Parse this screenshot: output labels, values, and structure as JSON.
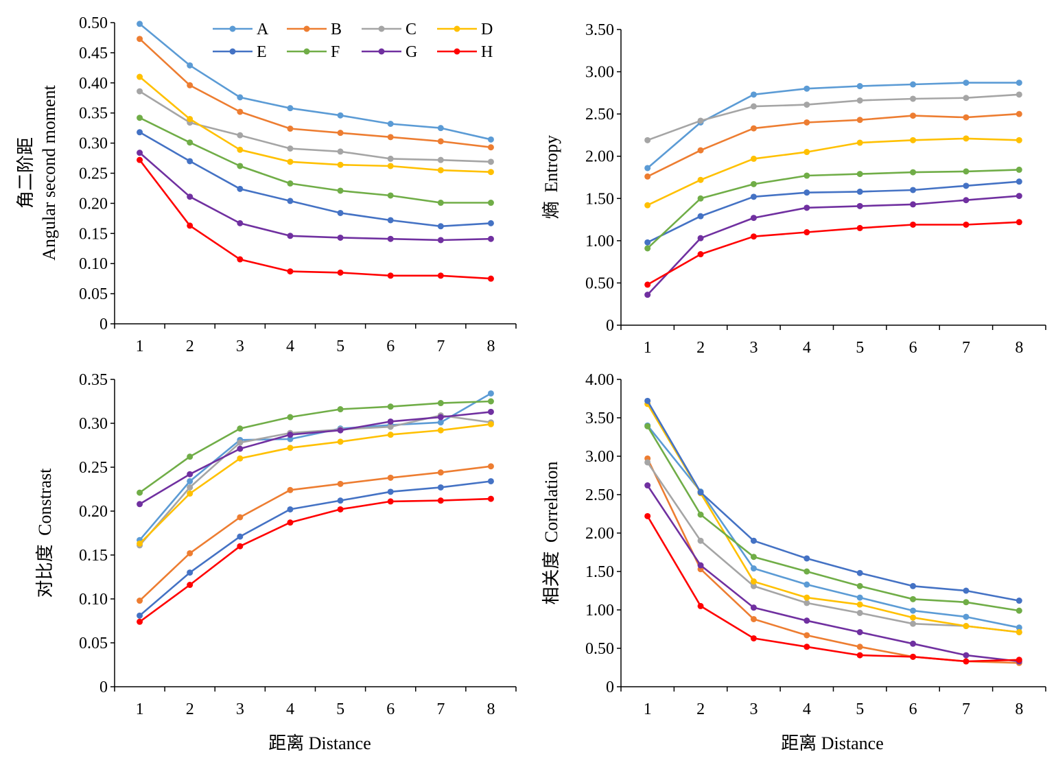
{
  "legend": [
    {
      "label": "A",
      "color": "#5B9BD5"
    },
    {
      "label": "B",
      "color": "#ED7D31"
    },
    {
      "label": "C",
      "color": "#A5A5A5"
    },
    {
      "label": "D",
      "color": "#FFC000"
    },
    {
      "label": "E",
      "color": "#4472C4"
    },
    {
      "label": "F",
      "color": "#70AD47"
    },
    {
      "label": "G",
      "color": "#7030A0"
    },
    {
      "label": "H",
      "color": "#FF0000"
    }
  ],
  "chart_data": [
    {
      "type": "line",
      "title": "",
      "ylabel_cn": "角二阶距",
      "ylabel_en": "Angular second moment",
      "xlabel": "",
      "x": [
        1,
        2,
        3,
        4,
        5,
        6,
        7,
        8
      ],
      "ylim": [
        0,
        0.5
      ],
      "yticks": [
        "0",
        "0.05",
        "0.10",
        "0.15",
        "0.20",
        "0.25",
        "0.30",
        "0.35",
        "0.40",
        "0.45",
        "0.50"
      ],
      "legend_placement": "top",
      "series": [
        {
          "name": "A",
          "values": [
            0.498,
            0.429,
            0.376,
            0.358,
            0.346,
            0.332,
            0.325,
            0.306
          ]
        },
        {
          "name": "B",
          "values": [
            0.473,
            0.396,
            0.352,
            0.324,
            0.317,
            0.31,
            0.303,
            0.293
          ]
        },
        {
          "name": "C",
          "values": [
            0.386,
            0.334,
            0.313,
            0.291,
            0.286,
            0.274,
            0.272,
            0.269
          ]
        },
        {
          "name": "D",
          "values": [
            0.41,
            0.34,
            0.289,
            0.269,
            0.264,
            0.262,
            0.255,
            0.252
          ]
        },
        {
          "name": "E",
          "values": [
            0.318,
            0.27,
            0.224,
            0.204,
            0.184,
            0.172,
            0.162,
            0.167
          ]
        },
        {
          "name": "F",
          "values": [
            0.342,
            0.301,
            0.262,
            0.233,
            0.221,
            0.213,
            0.201,
            0.201
          ]
        },
        {
          "name": "G",
          "values": [
            0.284,
            0.211,
            0.167,
            0.146,
            0.143,
            0.141,
            0.139,
            0.141
          ]
        },
        {
          "name": "H",
          "values": [
            0.272,
            0.163,
            0.107,
            0.087,
            0.085,
            0.08,
            0.08,
            0.075
          ]
        }
      ]
    },
    {
      "type": "line",
      "title": "",
      "ylabel_cn": "熵",
      "ylabel_en": "Entropy",
      "xlabel": "",
      "x": [
        1,
        2,
        3,
        4,
        5,
        6,
        7,
        8
      ],
      "ylim": [
        0,
        3.5
      ],
      "yticks": [
        "0",
        "0.50",
        "1.00",
        "1.50",
        "2.00",
        "2.50",
        "3.00",
        "3.50"
      ],
      "series": [
        {
          "name": "A",
          "values": [
            1.86,
            2.4,
            2.73,
            2.8,
            2.83,
            2.85,
            2.87,
            2.87
          ]
        },
        {
          "name": "B",
          "values": [
            1.76,
            2.07,
            2.33,
            2.4,
            2.43,
            2.48,
            2.46,
            2.5
          ]
        },
        {
          "name": "C",
          "values": [
            2.19,
            2.42,
            2.59,
            2.61,
            2.66,
            2.68,
            2.69,
            2.73
          ]
        },
        {
          "name": "D",
          "values": [
            1.42,
            1.72,
            1.97,
            2.05,
            2.16,
            2.19,
            2.21,
            2.19
          ]
        },
        {
          "name": "E",
          "values": [
            0.98,
            1.29,
            1.52,
            1.57,
            1.58,
            1.6,
            1.65,
            1.7
          ]
        },
        {
          "name": "F",
          "values": [
            0.91,
            1.5,
            1.67,
            1.77,
            1.79,
            1.81,
            1.82,
            1.84
          ]
        },
        {
          "name": "G",
          "values": [
            0.36,
            1.03,
            1.27,
            1.39,
            1.41,
            1.43,
            1.48,
            1.53
          ]
        },
        {
          "name": "H",
          "values": [
            0.48,
            0.84,
            1.05,
            1.1,
            1.15,
            1.19,
            1.19,
            1.22
          ]
        }
      ]
    },
    {
      "type": "line",
      "title": "",
      "ylabel_cn": "对比度",
      "ylabel_en": "Constrast",
      "xlabel": "距离 Distance",
      "x": [
        1,
        2,
        3,
        4,
        5,
        6,
        7,
        8
      ],
      "ylim": [
        0,
        0.35
      ],
      "yticks": [
        "0",
        "0.05",
        "0.10",
        "0.15",
        "0.20",
        "0.25",
        "0.30",
        "0.35"
      ],
      "series": [
        {
          "name": "A",
          "values": [
            0.167,
            0.234,
            0.281,
            0.282,
            0.294,
            0.298,
            0.301,
            0.334
          ]
        },
        {
          "name": "B",
          "values": [
            0.098,
            0.152,
            0.193,
            0.224,
            0.231,
            0.238,
            0.244,
            0.251
          ]
        },
        {
          "name": "C",
          "values": [
            0.161,
            0.227,
            0.278,
            0.289,
            0.293,
            0.296,
            0.309,
            0.301
          ]
        },
        {
          "name": "D",
          "values": [
            0.163,
            0.22,
            0.26,
            0.272,
            0.279,
            0.287,
            0.292,
            0.299
          ]
        },
        {
          "name": "E",
          "values": [
            0.081,
            0.13,
            0.171,
            0.202,
            0.212,
            0.222,
            0.227,
            0.234
          ]
        },
        {
          "name": "F",
          "values": [
            0.221,
            0.262,
            0.294,
            0.307,
            0.316,
            0.319,
            0.323,
            0.325
          ]
        },
        {
          "name": "G",
          "values": [
            0.208,
            0.242,
            0.271,
            0.287,
            0.292,
            0.302,
            0.307,
            0.313
          ]
        },
        {
          "name": "H",
          "values": [
            0.074,
            0.116,
            0.16,
            0.187,
            0.202,
            0.211,
            0.212,
            0.214
          ]
        }
      ]
    },
    {
      "type": "line",
      "title": "",
      "ylabel_cn": "相关度",
      "ylabel_en": "Correlation",
      "xlabel": "距离 Distance",
      "x": [
        1,
        2,
        3,
        4,
        5,
        6,
        7,
        8
      ],
      "ylim": [
        0,
        4.0
      ],
      "yticks": [
        "0",
        "0.50",
        "1.00",
        "1.50",
        "2.00",
        "2.50",
        "3.00",
        "3.50",
        "4.00"
      ],
      "series": [
        {
          "name": "A",
          "values": [
            3.4,
            2.54,
            1.54,
            1.33,
            1.16,
            0.99,
            0.91,
            0.77
          ]
        },
        {
          "name": "B",
          "values": [
            2.97,
            1.53,
            0.88,
            0.67,
            0.52,
            0.39,
            0.33,
            0.31
          ]
        },
        {
          "name": "C",
          "values": [
            2.92,
            1.9,
            1.31,
            1.09,
            0.96,
            0.82,
            0.79,
            0.71
          ]
        },
        {
          "name": "D",
          "values": [
            3.68,
            2.52,
            1.37,
            1.16,
            1.07,
            0.9,
            0.79,
            0.71
          ]
        },
        {
          "name": "E",
          "values": [
            3.72,
            2.53,
            1.9,
            1.67,
            1.48,
            1.31,
            1.25,
            1.12
          ]
        },
        {
          "name": "F",
          "values": [
            3.39,
            2.24,
            1.69,
            1.5,
            1.31,
            1.14,
            1.1,
            0.99
          ]
        },
        {
          "name": "G",
          "values": [
            2.62,
            1.58,
            1.03,
            0.86,
            0.71,
            0.56,
            0.41,
            0.33
          ]
        },
        {
          "name": "H",
          "values": [
            2.22,
            1.05,
            0.63,
            0.52,
            0.41,
            0.39,
            0.33,
            0.35
          ]
        }
      ]
    }
  ]
}
